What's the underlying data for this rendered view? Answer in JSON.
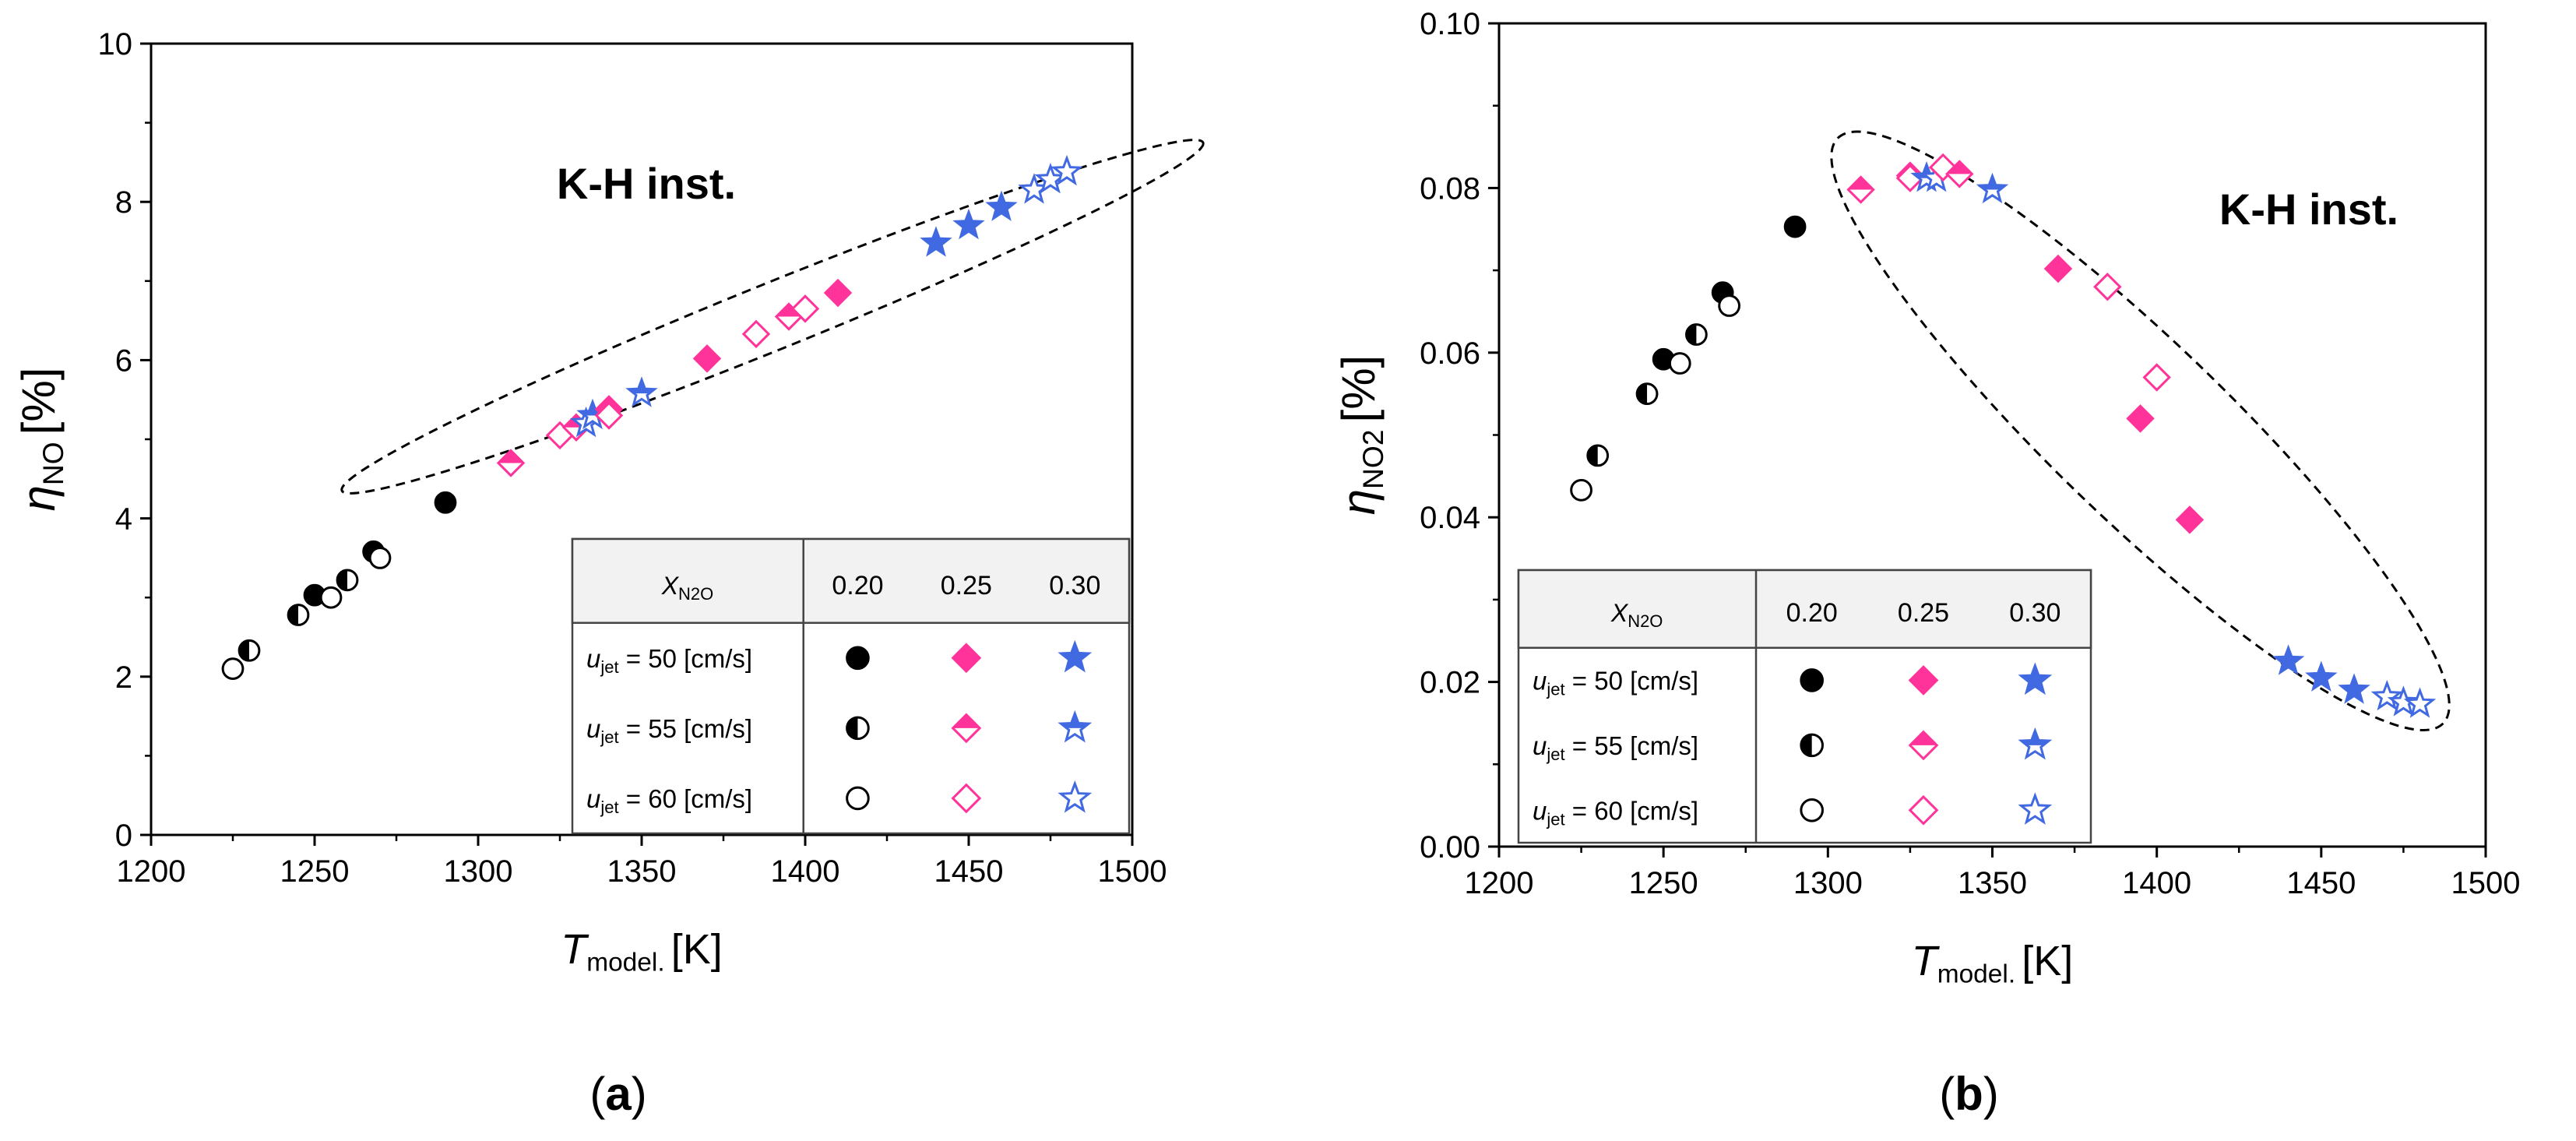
{
  "colors": {
    "black": "#000000",
    "pink": "#ff3399",
    "blue": "#4169e1"
  },
  "chart_data": [
    {
      "type": "scatter",
      "panel_label": "(a)",
      "xlabel": {
        "main": "T",
        "sub": "model.",
        "unit": "[K]"
      },
      "ylabel": {
        "main": "η",
        "sub": "NO",
        "unit": "[%]"
      },
      "xlim": [
        1200,
        1500
      ],
      "ylim": [
        0,
        10
      ],
      "xticks": [
        "1200",
        "1250",
        "1300",
        "1350",
        "1400",
        "1450",
        "1500"
      ],
      "yticks": [
        "0",
        "2",
        "4",
        "6",
        "8",
        "10"
      ],
      "annotation": "K-H inst.",
      "grid": false,
      "legend_position": "bottom-right",
      "points": [
        {
          "x": 1225,
          "y": 2.1,
          "marker": "circle",
          "fill": "open",
          "color": "black"
        },
        {
          "x": 1230,
          "y": 2.33,
          "marker": "circle",
          "fill": "half",
          "color": "black"
        },
        {
          "x": 1245,
          "y": 2.78,
          "marker": "circle",
          "fill": "half",
          "color": "black"
        },
        {
          "x": 1250,
          "y": 3.03,
          "marker": "circle",
          "fill": "full",
          "color": "black"
        },
        {
          "x": 1255,
          "y": 3.0,
          "marker": "circle",
          "fill": "open",
          "color": "black"
        },
        {
          "x": 1260,
          "y": 3.22,
          "marker": "circle",
          "fill": "half",
          "color": "black"
        },
        {
          "x": 1268,
          "y": 3.58,
          "marker": "circle",
          "fill": "full",
          "color": "black"
        },
        {
          "x": 1270,
          "y": 3.5,
          "marker": "circle",
          "fill": "open",
          "color": "black"
        },
        {
          "x": 1290,
          "y": 4.2,
          "marker": "circle",
          "fill": "full",
          "color": "black"
        },
        {
          "x": 1310,
          "y": 4.7,
          "marker": "diamond",
          "fill": "half",
          "color": "pink"
        },
        {
          "x": 1325,
          "y": 5.05,
          "marker": "diamond",
          "fill": "open",
          "color": "pink"
        },
        {
          "x": 1330,
          "y": 5.15,
          "marker": "diamond",
          "fill": "half",
          "color": "pink"
        },
        {
          "x": 1333,
          "y": 5.2,
          "marker": "star",
          "fill": "open",
          "color": "blue"
        },
        {
          "x": 1335,
          "y": 5.3,
          "marker": "star",
          "fill": "half",
          "color": "blue"
        },
        {
          "x": 1340,
          "y": 5.38,
          "marker": "diamond",
          "fill": "full",
          "color": "pink"
        },
        {
          "x": 1340,
          "y": 5.3,
          "marker": "diamond",
          "fill": "open",
          "color": "pink"
        },
        {
          "x": 1350,
          "y": 5.58,
          "marker": "star",
          "fill": "half",
          "color": "blue"
        },
        {
          "x": 1370,
          "y": 6.02,
          "marker": "diamond",
          "fill": "full",
          "color": "pink"
        },
        {
          "x": 1385,
          "y": 6.33,
          "marker": "diamond",
          "fill": "open",
          "color": "pink"
        },
        {
          "x": 1395,
          "y": 6.55,
          "marker": "diamond",
          "fill": "half",
          "color": "pink"
        },
        {
          "x": 1400,
          "y": 6.65,
          "marker": "diamond",
          "fill": "open",
          "color": "pink"
        },
        {
          "x": 1410,
          "y": 6.85,
          "marker": "diamond",
          "fill": "full",
          "color": "pink"
        },
        {
          "x": 1440,
          "y": 7.48,
          "marker": "star",
          "fill": "full",
          "color": "blue"
        },
        {
          "x": 1450,
          "y": 7.7,
          "marker": "star",
          "fill": "full",
          "color": "blue"
        },
        {
          "x": 1460,
          "y": 7.93,
          "marker": "star",
          "fill": "full",
          "color": "blue"
        },
        {
          "x": 1470,
          "y": 8.15,
          "marker": "star",
          "fill": "open",
          "color": "blue"
        },
        {
          "x": 1475,
          "y": 8.28,
          "marker": "star",
          "fill": "open",
          "color": "blue"
        },
        {
          "x": 1480,
          "y": 8.38,
          "marker": "star",
          "fill": "open",
          "color": "blue"
        }
      ],
      "ellipse": {
        "cx": 1390,
        "cy": 6.55,
        "rx": 142,
        "ry": 0.42,
        "angle_deg": -22
      }
    },
    {
      "type": "scatter",
      "panel_label": "(b)",
      "xlabel": {
        "main": "T",
        "sub": "model.",
        "unit": "[K]"
      },
      "ylabel": {
        "main": "η",
        "sub": "NO2",
        "unit": "[%]"
      },
      "xlim": [
        1200,
        1500
      ],
      "ylim": [
        0,
        0.1
      ],
      "xticks": [
        "1200",
        "1250",
        "1300",
        "1350",
        "1400",
        "1450",
        "1500"
      ],
      "yticks": [
        "0.00",
        "0.02",
        "0.04",
        "0.06",
        "0.08",
        "0.10"
      ],
      "annotation": "K-H inst.",
      "grid": false,
      "legend_position": "bottom-left",
      "points": [
        {
          "x": 1225,
          "y": 0.0433,
          "marker": "circle",
          "fill": "open",
          "color": "black"
        },
        {
          "x": 1230,
          "y": 0.0475,
          "marker": "circle",
          "fill": "half",
          "color": "black"
        },
        {
          "x": 1245,
          "y": 0.055,
          "marker": "circle",
          "fill": "half",
          "color": "black"
        },
        {
          "x": 1250,
          "y": 0.0592,
          "marker": "circle",
          "fill": "full",
          "color": "black"
        },
        {
          "x": 1255,
          "y": 0.0587,
          "marker": "circle",
          "fill": "open",
          "color": "black"
        },
        {
          "x": 1260,
          "y": 0.0622,
          "marker": "circle",
          "fill": "half",
          "color": "black"
        },
        {
          "x": 1268,
          "y": 0.0673,
          "marker": "circle",
          "fill": "full",
          "color": "black"
        },
        {
          "x": 1270,
          "y": 0.0657,
          "marker": "circle",
          "fill": "open",
          "color": "black"
        },
        {
          "x": 1290,
          "y": 0.0753,
          "marker": "circle",
          "fill": "full",
          "color": "black"
        },
        {
          "x": 1310,
          "y": 0.0798,
          "marker": "diamond",
          "fill": "half",
          "color": "pink"
        },
        {
          "x": 1325,
          "y": 0.0815,
          "marker": "diamond",
          "fill": "full",
          "color": "pink"
        },
        {
          "x": 1325,
          "y": 0.0812,
          "marker": "diamond",
          "fill": "open",
          "color": "pink"
        },
        {
          "x": 1330,
          "y": 0.0812,
          "marker": "star",
          "fill": "half",
          "color": "blue"
        },
        {
          "x": 1333,
          "y": 0.0812,
          "marker": "star",
          "fill": "open",
          "color": "blue"
        },
        {
          "x": 1335,
          "y": 0.0825,
          "marker": "diamond",
          "fill": "open",
          "color": "pink"
        },
        {
          "x": 1340,
          "y": 0.0817,
          "marker": "diamond",
          "fill": "half",
          "color": "pink"
        },
        {
          "x": 1350,
          "y": 0.0798,
          "marker": "star",
          "fill": "half",
          "color": "blue"
        },
        {
          "x": 1370,
          "y": 0.0702,
          "marker": "diamond",
          "fill": "full",
          "color": "pink"
        },
        {
          "x": 1385,
          "y": 0.068,
          "marker": "diamond",
          "fill": "open",
          "color": "pink"
        },
        {
          "x": 1395,
          "y": 0.052,
          "marker": "diamond",
          "fill": "full",
          "color": "pink"
        },
        {
          "x": 1400,
          "y": 0.057,
          "marker": "diamond",
          "fill": "open",
          "color": "pink"
        },
        {
          "x": 1410,
          "y": 0.0397,
          "marker": "diamond",
          "fill": "full",
          "color": "pink"
        },
        {
          "x": 1440,
          "y": 0.0225,
          "marker": "star",
          "fill": "full",
          "color": "blue"
        },
        {
          "x": 1450,
          "y": 0.0205,
          "marker": "star",
          "fill": "full",
          "color": "blue"
        },
        {
          "x": 1460,
          "y": 0.019,
          "marker": "star",
          "fill": "full",
          "color": "blue"
        },
        {
          "x": 1470,
          "y": 0.0182,
          "marker": "star",
          "fill": "open",
          "color": "blue"
        },
        {
          "x": 1475,
          "y": 0.0175,
          "marker": "star",
          "fill": "open",
          "color": "blue"
        },
        {
          "x": 1480,
          "y": 0.0173,
          "marker": "star",
          "fill": "open",
          "color": "blue"
        }
      ],
      "ellipse": {
        "cx": 1395,
        "cy": 0.0505,
        "rx": 128,
        "ry": 0.0107,
        "angle_deg": 44
      }
    }
  ],
  "legend": {
    "header": {
      "main": "X",
      "sub": "N2O"
    },
    "columns": [
      "0.20",
      "0.25",
      "0.30"
    ],
    "rows": [
      {
        "label_main": "u",
        "label_sub": "jet",
        "label_rest": " = 50 [cm/s]",
        "fill": "full"
      },
      {
        "label_main": "u",
        "label_sub": "jet",
        "label_rest": " = 55 [cm/s]",
        "fill": "half"
      },
      {
        "label_main": "u",
        "label_sub": "jet",
        "label_rest": " = 60 [cm/s]",
        "fill": "open"
      }
    ],
    "column_markers": [
      {
        "marker": "circle",
        "color": "black"
      },
      {
        "marker": "diamond",
        "color": "pink"
      },
      {
        "marker": "star",
        "color": "blue"
      }
    ]
  }
}
